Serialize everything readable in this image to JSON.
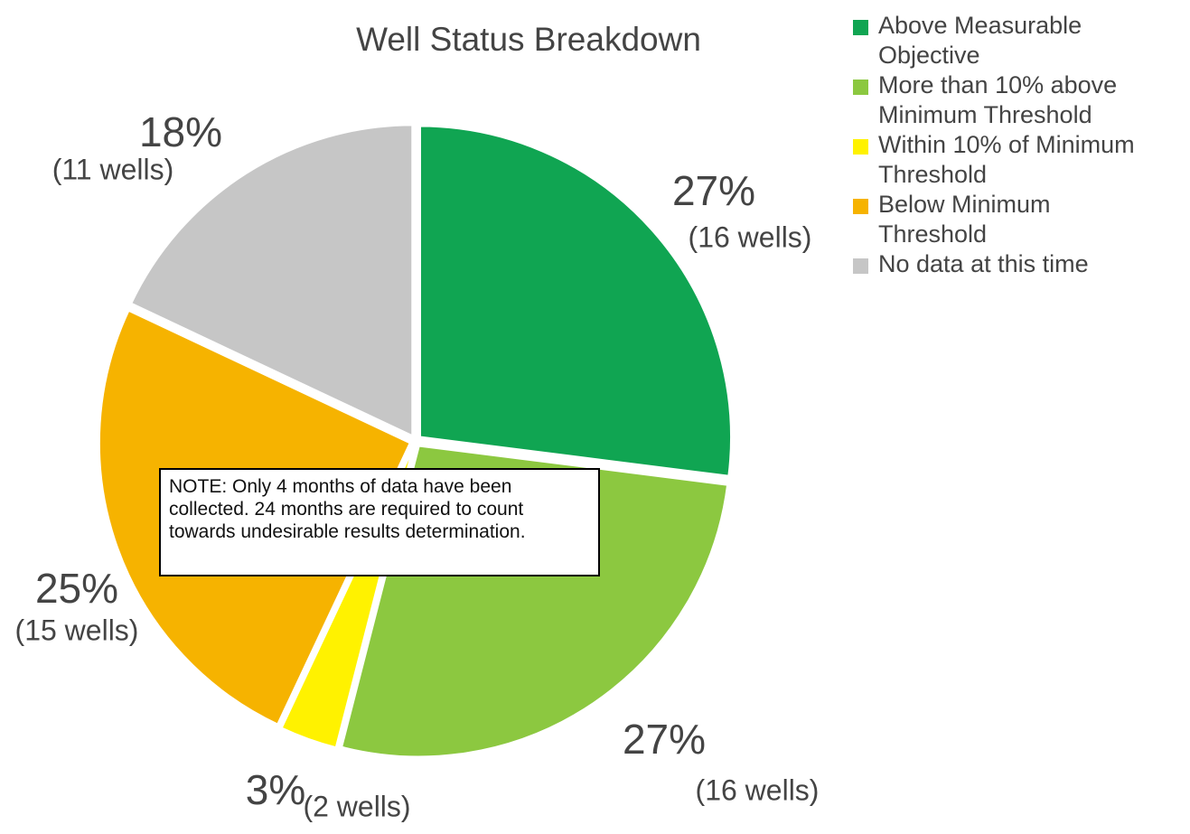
{
  "chart_data": {
    "type": "pie",
    "title": "Well Status Breakdown",
    "categories": [
      "Above Measurable Objective",
      "More than 10% above Minimum Threshold",
      "Within 10% of Minimum Threshold",
      "Below Minimum Threshold",
      "No data at this time"
    ],
    "values": [
      27,
      27,
      3,
      25,
      18
    ],
    "value_labels": [
      "27%",
      "27%",
      "3%",
      "25%",
      "18%"
    ],
    "well_labels": [
      "(16 wells)",
      "(16 wells)",
      "(2 wells)",
      "(15 wells)",
      "(11 wells)"
    ],
    "colors": [
      "#10a552",
      "#8cc840",
      "#fff200",
      "#f6b300",
      "#c6c6c6"
    ],
    "legend": "right",
    "annotation": "NOTE: Only 4 months of data have been collected. 24 months are required to count towards undesirable results determination."
  }
}
